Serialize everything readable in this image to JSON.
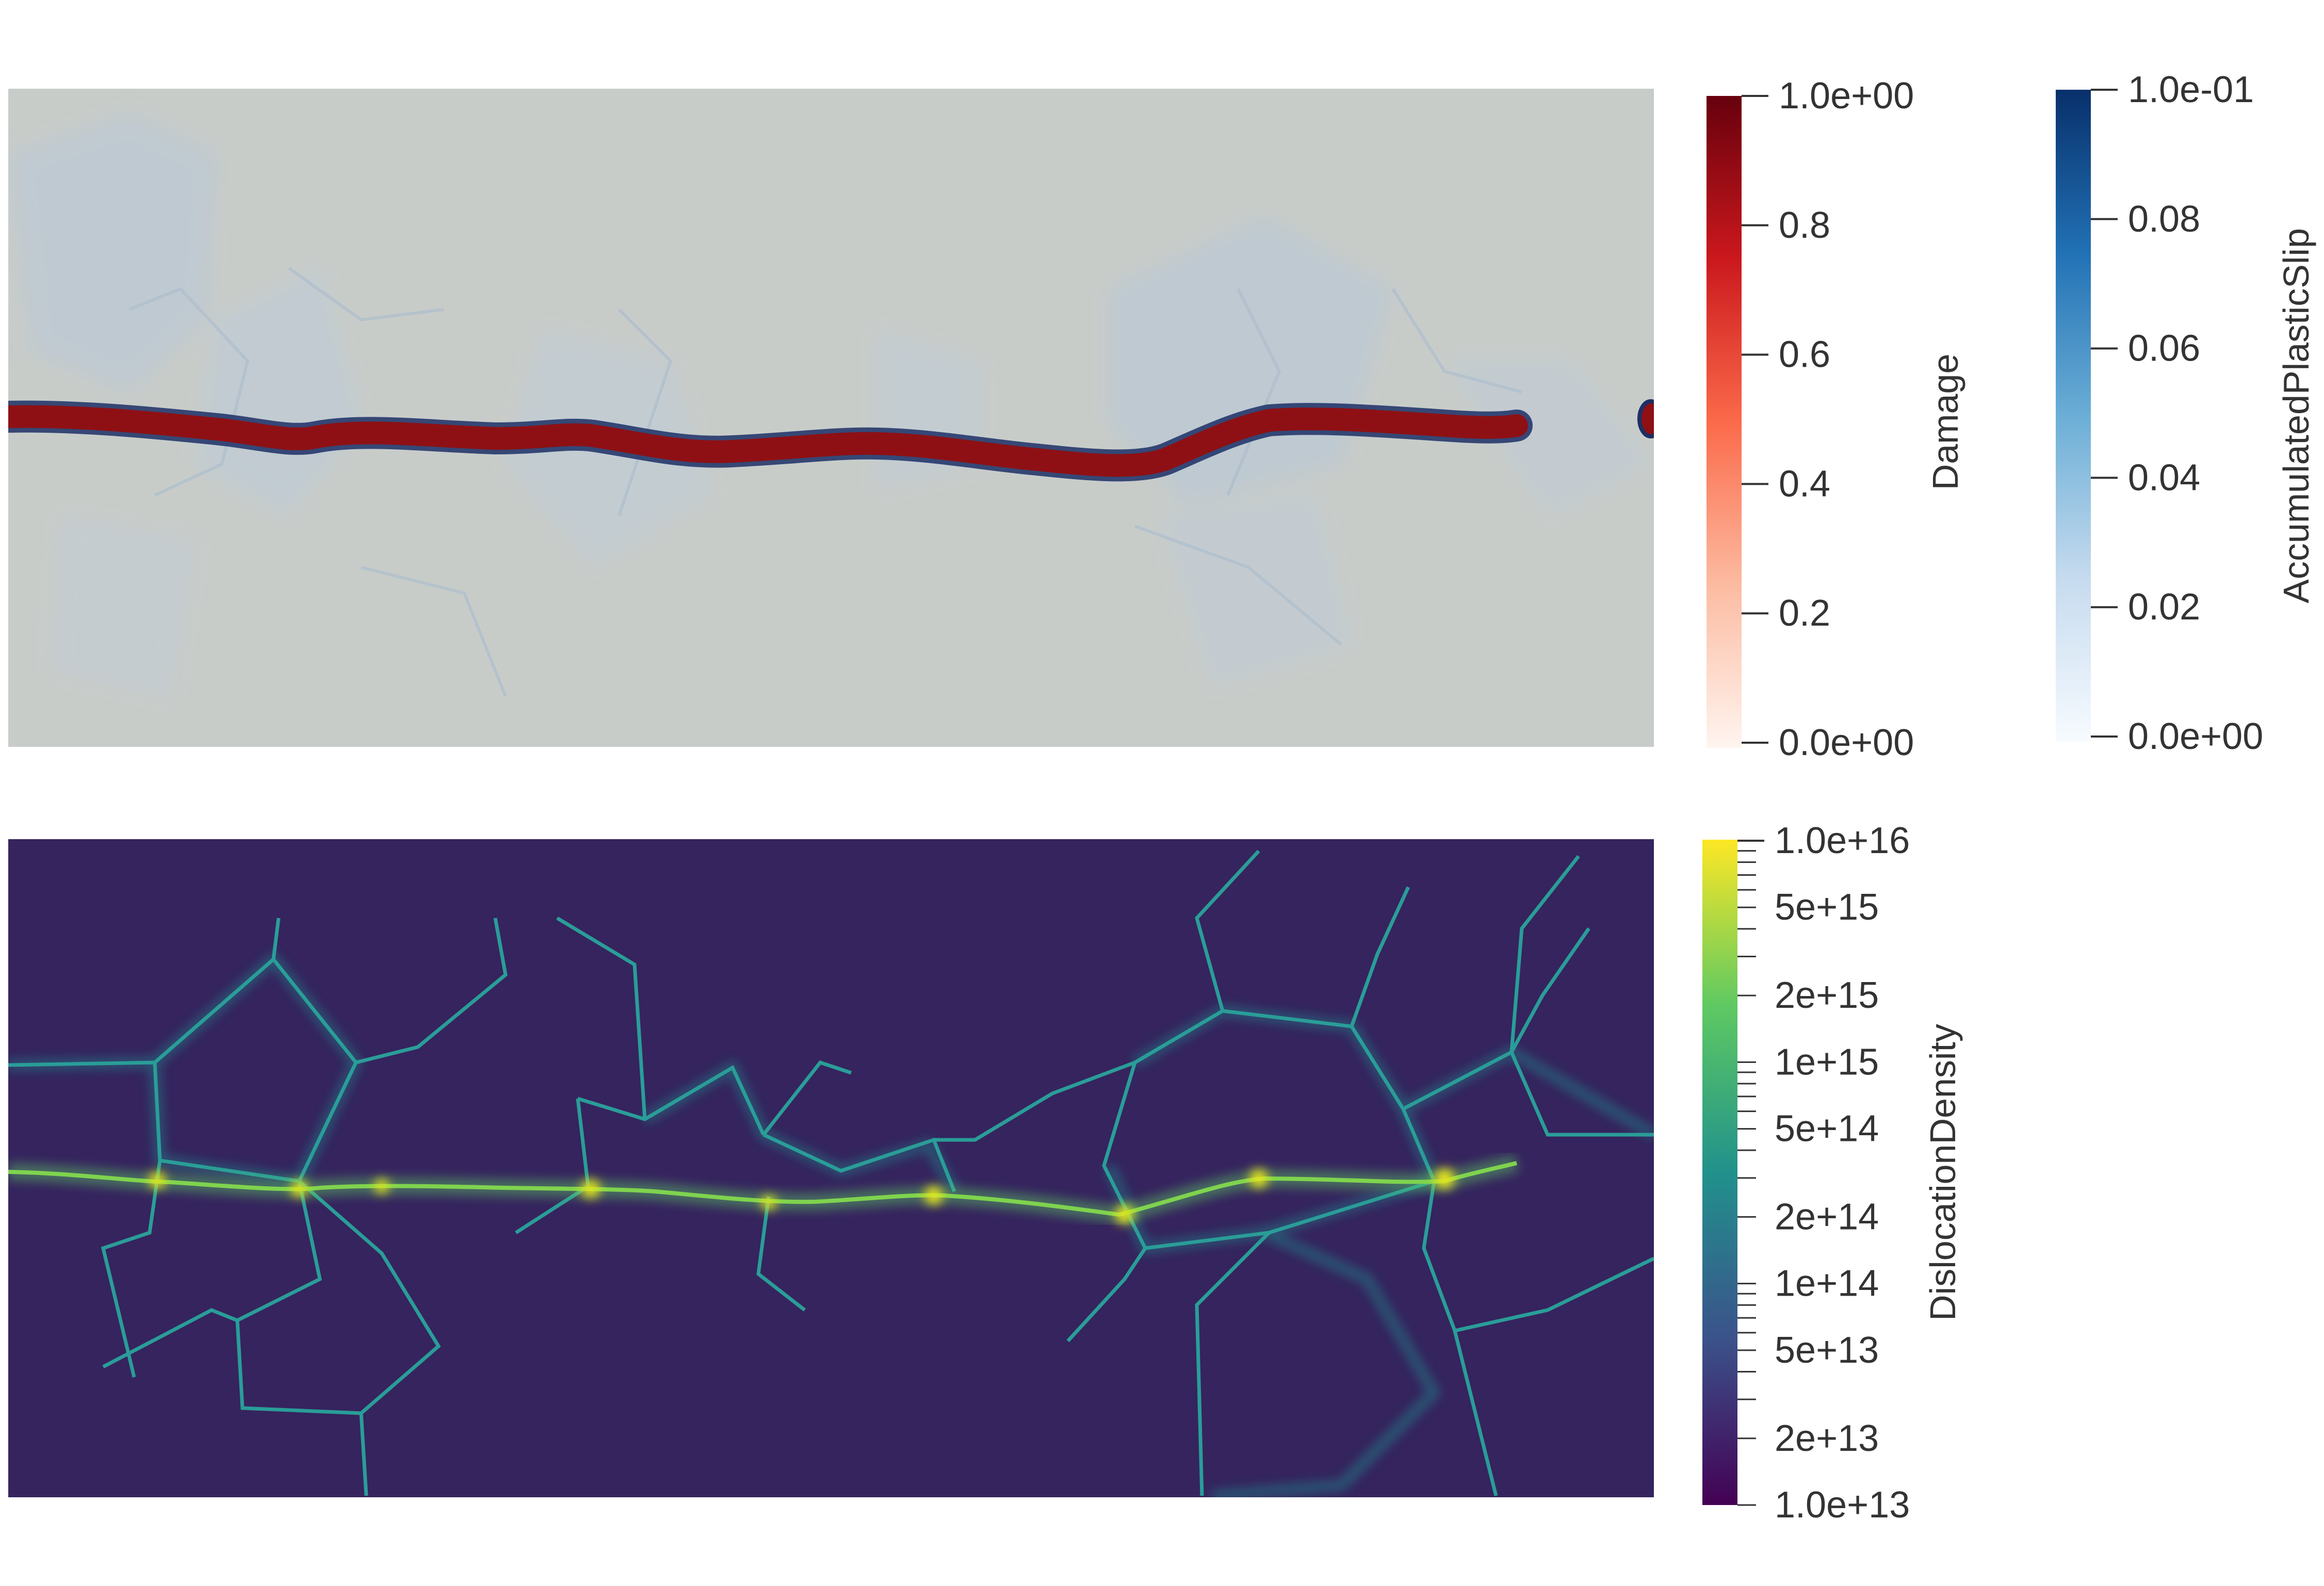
{
  "colorbars": {
    "damage": {
      "title": "Damage",
      "ticks": [
        "1.0e+00",
        "0.8",
        "0.6",
        "0.4",
        "0.2",
        "0.0e+00"
      ],
      "colors": [
        "#fff5f0",
        "#fcbba1",
        "#fb6a4a",
        "#cb181d",
        "#67000d"
      ]
    },
    "slip": {
      "title": "AccumulatedPlasticSlip",
      "ticks": [
        "1.0e-01",
        "0.08",
        "0.06",
        "0.04",
        "0.02",
        "0.0e+00"
      ],
      "colors": [
        "#f7fbff",
        "#c6dbef",
        "#6baed6",
        "#2171b5",
        "#08306b"
      ]
    },
    "dislocation": {
      "title": "DislocationDensity",
      "major_ticks": [
        "1.0e+16",
        "5e+15",
        "2e+15",
        "1e+15",
        "5e+14",
        "2e+14",
        "1e+14",
        "5e+13",
        "2e+13",
        "1.0e+13"
      ],
      "colors": [
        "#440154",
        "#3b528b",
        "#21918c",
        "#5ec962",
        "#fde725"
      ]
    }
  },
  "fields": {
    "top_background": "#c8ccc9",
    "crack_color": "#8e1014",
    "bottom_background": "#35245e",
    "grain_boundary_color": "#2aa6a0"
  }
}
